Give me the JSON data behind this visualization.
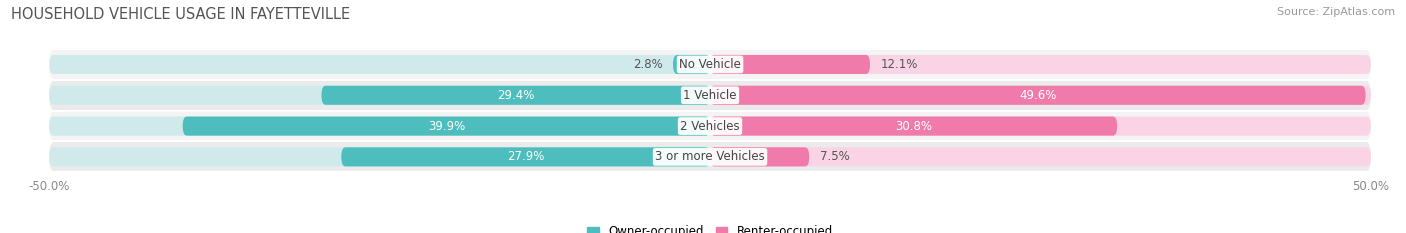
{
  "title": "HOUSEHOLD VEHICLE USAGE IN FAYETTEVILLE",
  "source": "Source: ZipAtlas.com",
  "categories": [
    "No Vehicle",
    "1 Vehicle",
    "2 Vehicles",
    "3 or more Vehicles"
  ],
  "owner_values": [
    2.8,
    29.4,
    39.9,
    27.9
  ],
  "renter_values": [
    12.1,
    49.6,
    30.8,
    7.5
  ],
  "owner_color": "#4dbdbe",
  "renter_color": "#f07aaa",
  "owner_label": "Owner-occupied",
  "renter_label": "Renter-occupied",
  "owner_light_color": "#d0eaeb",
  "renter_light_color": "#fad4e5",
  "row_bg_colors": [
    "#f4f4f4",
    "#ebebeb"
  ],
  "xlim": [
    -50,
    50
  ],
  "xtick_left": "-50.0%",
  "xtick_right": "50.0%",
  "title_fontsize": 10.5,
  "source_fontsize": 8,
  "label_fontsize": 8.5,
  "bar_height": 0.62,
  "inside_label_threshold_owner": 10.0,
  "inside_label_threshold_renter": 15.0
}
